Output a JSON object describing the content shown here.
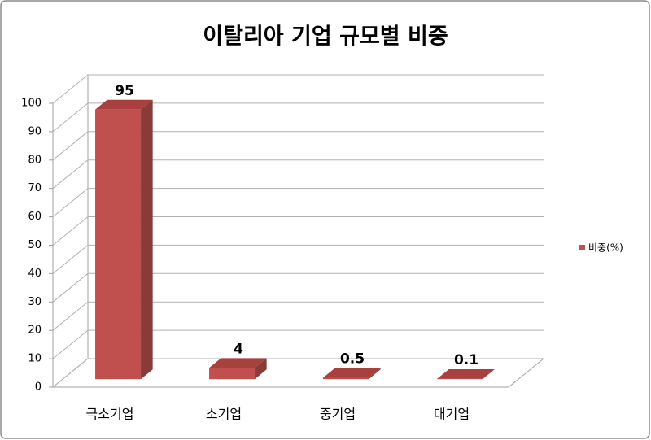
{
  "chart_data": {
    "type": "bar3d",
    "title": "이탈리아 기업 규모별 비중",
    "categories": [
      "극소기업",
      "소기업",
      "중기업",
      "대기업"
    ],
    "series": [
      {
        "name": "비중(%)",
        "color": "#c0504d",
        "values": [
          95,
          4,
          0.5,
          0.1
        ]
      }
    ],
    "ylim": [
      0,
      100
    ],
    "yticks": [
      0,
      10,
      20,
      30,
      40,
      50,
      60,
      70,
      80,
      90,
      100
    ],
    "grid": true,
    "legend": "right"
  }
}
